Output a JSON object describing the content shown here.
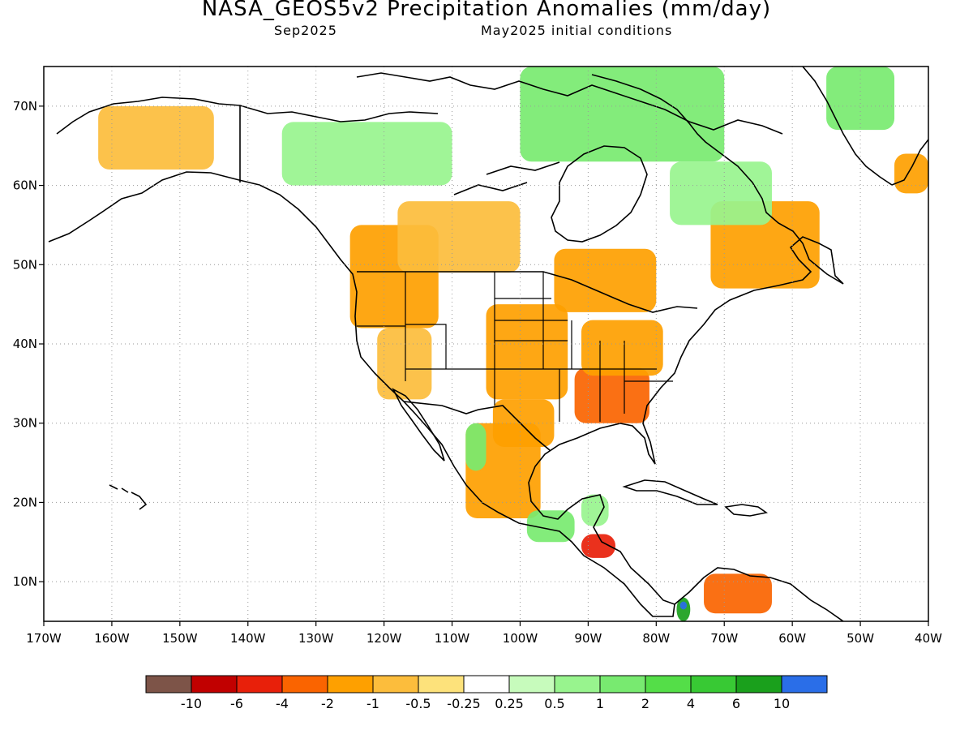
{
  "title": "NASA_GEOS5v2 Precipitation Anomalies (mm/day)",
  "subtitle_left": "Sep2025",
  "subtitle_right": "May2025 initial conditions",
  "map": {
    "projection": "cylindrical equidistant",
    "region": "North America",
    "lon_range": [
      -170,
      -40
    ],
    "lat_range": [
      5,
      75
    ],
    "grid": "dotted",
    "lon_ticks": [
      -170,
      -160,
      -150,
      -140,
      -130,
      -120,
      -110,
      -100,
      -90,
      -80,
      -70,
      -60,
      -50,
      -40
    ],
    "lon_tick_labels": [
      "170W",
      "160W",
      "150W",
      "140W",
      "130W",
      "120W",
      "110W",
      "100W",
      "90W",
      "80W",
      "70W",
      "60W",
      "50W",
      "40W"
    ],
    "lat_ticks": [
      10,
      20,
      30,
      40,
      50,
      60,
      70
    ],
    "lat_tick_labels": [
      "10N",
      "20N",
      "30N",
      "40N",
      "50N",
      "60N",
      "70N"
    ],
    "anomaly_regions": [
      {
        "name": "Northwest US / SW Canada",
        "lon": [
          -125,
          -112
        ],
        "lat": [
          42,
          55
        ],
        "class": -1
      },
      {
        "name": "Great Basin",
        "lon": [
          -121,
          -113
        ],
        "lat": [
          33,
          42
        ],
        "class": -0.5
      },
      {
        "name": "Central Plains",
        "lon": [
          -105,
          -93
        ],
        "lat": [
          33,
          45
        ],
        "class": -1
      },
      {
        "name": "Texas",
        "lon": [
          -104,
          -95
        ],
        "lat": [
          27,
          33
        ],
        "class": -1
      },
      {
        "name": "Northern Mexico",
        "lon": [
          -108,
          -97
        ],
        "lat": [
          18,
          30
        ],
        "class": -1
      },
      {
        "name": "Southeast US",
        "lon": [
          -92,
          -81
        ],
        "lat": [
          30,
          37
        ],
        "class": -2
      },
      {
        "name": "Ohio Valley",
        "lon": [
          -91,
          -79
        ],
        "lat": [
          36,
          43
        ],
        "class": -1
      },
      {
        "name": "Great Lakes / Ontario",
        "lon": [
          -95,
          -80
        ],
        "lat": [
          44,
          52
        ],
        "class": -1
      },
      {
        "name": "Quebec / Labrador",
        "lon": [
          -72,
          -56
        ],
        "lat": [
          47,
          58
        ],
        "class": -1
      },
      {
        "name": "Central Canada",
        "lon": [
          -118,
          -100
        ],
        "lat": [
          49,
          58
        ],
        "class": -0.5
      },
      {
        "name": "Alaska interior",
        "lon": [
          -162,
          -145
        ],
        "lat": [
          62,
          70
        ],
        "class": -0.5
      },
      {
        "name": "Guatemala / Honduras",
        "lon": [
          -91,
          -86
        ],
        "lat": [
          13,
          16
        ],
        "class": -4
      },
      {
        "name": "Venezuela",
        "lon": [
          -73,
          -63
        ],
        "lat": [
          6,
          11
        ],
        "class": -2
      },
      {
        "name": "Southeast Greenland",
        "lon": [
          -45,
          -40
        ],
        "lat": [
          59,
          64
        ],
        "class": -1
      },
      {
        "name": "Arctic Archipelago",
        "lon": [
          -100,
          -70
        ],
        "lat": [
          63,
          75
        ],
        "class": 1
      },
      {
        "name": "Northwest Territories",
        "lon": [
          -135,
          -110
        ],
        "lat": [
          60,
          68
        ],
        "class": 0.5
      },
      {
        "name": "Northern Quebec",
        "lon": [
          -78,
          -63
        ],
        "lat": [
          55,
          63
        ],
        "class": 0.5
      },
      {
        "name": "Southern Mexico",
        "lon": [
          -99,
          -92
        ],
        "lat": [
          15,
          19
        ],
        "class": 1
      },
      {
        "name": "Yucatan",
        "lon": [
          -91,
          -87
        ],
        "lat": [
          17,
          21
        ],
        "class": 0.5
      },
      {
        "name": "Western Greenland",
        "lon": [
          -55,
          -45
        ],
        "lat": [
          67,
          75
        ],
        "class": 1
      },
      {
        "name": "Sierra Madre Occidental",
        "lon": [
          -108,
          -105
        ],
        "lat": [
          24,
          30
        ],
        "class": 1
      },
      {
        "name": "Colombia",
        "lon": [
          -77,
          -75
        ],
        "lat": [
          5,
          8
        ],
        "class": 6
      },
      {
        "name": "Central Colombia",
        "lon": [
          -76.5,
          -75.5
        ],
        "lat": [
          6.5,
          7.5
        ],
        "class": 10
      }
    ]
  },
  "colorbar": {
    "colors": [
      "#7d5448",
      "#c10000",
      "#e8200a",
      "#fa6400",
      "#fea000",
      "#fcbd3c",
      "#fde27b",
      "#ffffff",
      "#c7fbbc",
      "#98f48e",
      "#78ea70",
      "#54de48",
      "#38c934",
      "#1aa01c",
      "#2a6ee8"
    ],
    "labels": [
      "-10",
      "-6",
      "-4",
      "-2",
      "-1",
      "-0.5",
      "-0.25",
      "0.25",
      "0.5",
      "1",
      "2",
      "4",
      "6",
      "10"
    ]
  }
}
